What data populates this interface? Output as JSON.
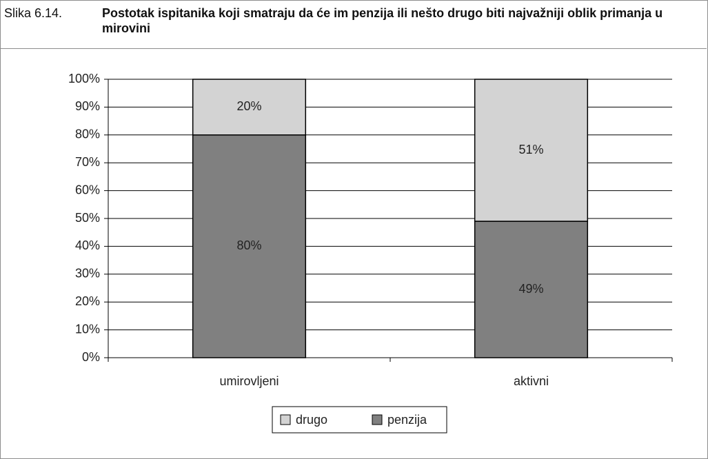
{
  "chart_data": {
    "type": "bar",
    "stacked": true,
    "label": "Slika 6.14.",
    "title": "Postotak ispitanika koji smatraju da će im penzija ili nešto drugo biti najvažniji oblik primanja u mirovini",
    "categories": [
      "umirovljeni",
      "aktivni"
    ],
    "series": [
      {
        "name": "drugo",
        "color": "#d3d3d3",
        "values": [
          20,
          51
        ],
        "value_labels": [
          "20%",
          "51%"
        ]
      },
      {
        "name": "penzija",
        "color": "#808080",
        "values": [
          80,
          49
        ],
        "value_labels": [
          "80%",
          "49%"
        ]
      }
    ],
    "ylim": [
      0,
      100
    ],
    "yticks": [
      {
        "value": 0,
        "label": "0%"
      },
      {
        "value": 10,
        "label": "10%"
      },
      {
        "value": 20,
        "label": "20%"
      },
      {
        "value": 30,
        "label": "30%"
      },
      {
        "value": 40,
        "label": "40%"
      },
      {
        "value": 50,
        "label": "50%"
      },
      {
        "value": 60,
        "label": "60%"
      },
      {
        "value": 70,
        "label": "70%"
      },
      {
        "value": 80,
        "label": "80%"
      },
      {
        "value": 90,
        "label": "90%"
      },
      {
        "value": 100,
        "label": "100%"
      }
    ],
    "grid": true,
    "legend": "bottom"
  }
}
